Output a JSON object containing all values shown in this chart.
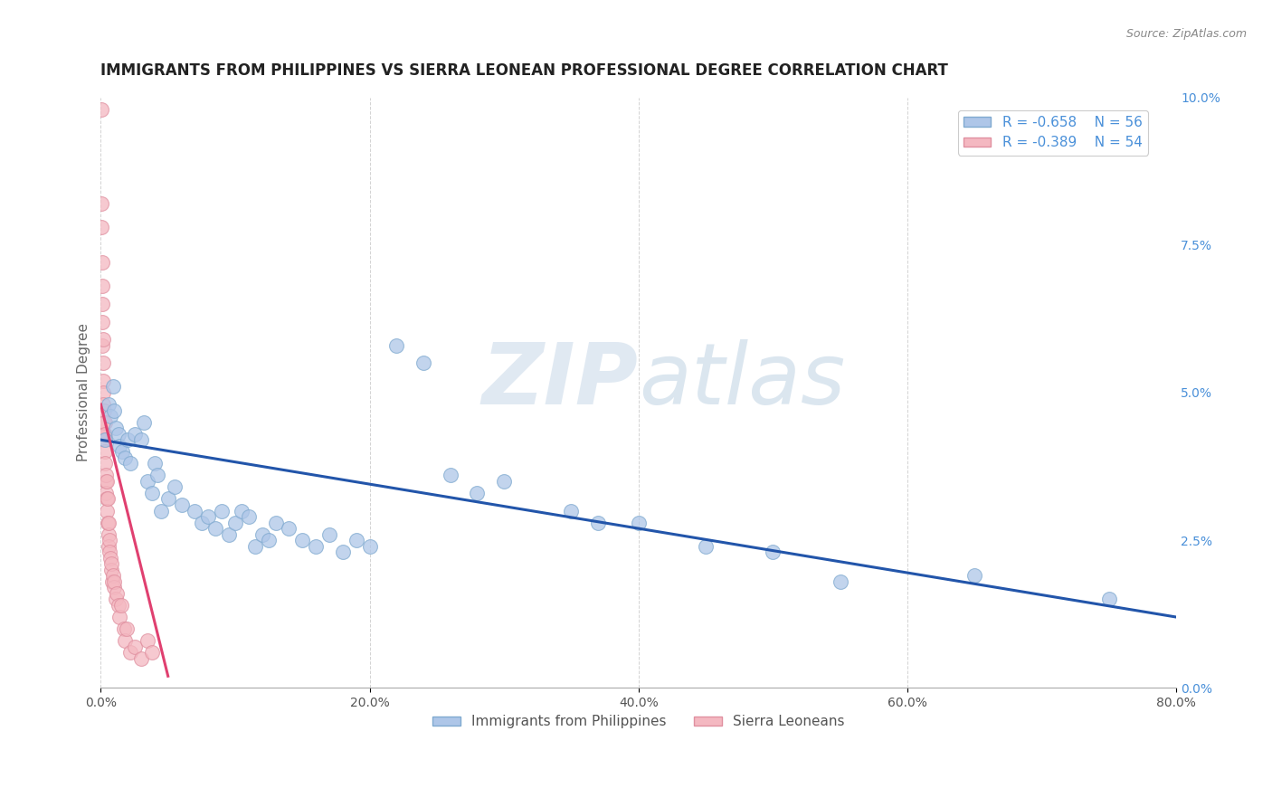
{
  "title": "IMMIGRANTS FROM PHILIPPINES VS SIERRA LEONEAN PROFESSIONAL DEGREE CORRELATION CHART",
  "source_text": "Source: ZipAtlas.com",
  "ylabel": "Professional Degree",
  "legend_entries": [
    {
      "label": "Immigrants from Philippines",
      "color": "#aec6e8",
      "R": -0.658,
      "N": 56
    },
    {
      "label": "Sierra Leoneans",
      "color": "#f4b8c1",
      "R": -0.389,
      "N": 54
    }
  ],
  "xlim": [
    0.0,
    80.0
  ],
  "ylim": [
    0.0,
    10.0
  ],
  "xticks": [
    0.0,
    20.0,
    40.0,
    60.0,
    80.0
  ],
  "yticks_right": [
    0.0,
    2.5,
    5.0,
    7.5,
    10.0
  ],
  "background_color": "#ffffff",
  "grid_color": "#c8c8c8",
  "watermark_zip": "ZIP",
  "watermark_atlas": "atlas",
  "philippines_scatter": [
    [
      0.3,
      4.2
    ],
    [
      0.6,
      4.8
    ],
    [
      0.7,
      4.6
    ],
    [
      0.9,
      5.1
    ],
    [
      1.0,
      4.7
    ],
    [
      1.1,
      4.4
    ],
    [
      1.3,
      4.3
    ],
    [
      1.4,
      4.1
    ],
    [
      1.6,
      4.0
    ],
    [
      1.8,
      3.9
    ],
    [
      2.0,
      4.2
    ],
    [
      2.2,
      3.8
    ],
    [
      2.5,
      4.3
    ],
    [
      3.0,
      4.2
    ],
    [
      3.2,
      4.5
    ],
    [
      3.5,
      3.5
    ],
    [
      3.8,
      3.3
    ],
    [
      4.0,
      3.8
    ],
    [
      4.2,
      3.6
    ],
    [
      4.5,
      3.0
    ],
    [
      5.0,
      3.2
    ],
    [
      5.5,
      3.4
    ],
    [
      6.0,
      3.1
    ],
    [
      7.0,
      3.0
    ],
    [
      7.5,
      2.8
    ],
    [
      8.0,
      2.9
    ],
    [
      8.5,
      2.7
    ],
    [
      9.0,
      3.0
    ],
    [
      9.5,
      2.6
    ],
    [
      10.0,
      2.8
    ],
    [
      10.5,
      3.0
    ],
    [
      11.0,
      2.9
    ],
    [
      11.5,
      2.4
    ],
    [
      12.0,
      2.6
    ],
    [
      12.5,
      2.5
    ],
    [
      13.0,
      2.8
    ],
    [
      14.0,
      2.7
    ],
    [
      15.0,
      2.5
    ],
    [
      16.0,
      2.4
    ],
    [
      17.0,
      2.6
    ],
    [
      18.0,
      2.3
    ],
    [
      19.0,
      2.5
    ],
    [
      20.0,
      2.4
    ],
    [
      22.0,
      5.8
    ],
    [
      24.0,
      5.5
    ],
    [
      26.0,
      3.6
    ],
    [
      28.0,
      3.3
    ],
    [
      30.0,
      3.5
    ],
    [
      35.0,
      3.0
    ],
    [
      37.0,
      2.8
    ],
    [
      40.0,
      2.8
    ],
    [
      45.0,
      2.4
    ],
    [
      50.0,
      2.3
    ],
    [
      55.0,
      1.8
    ],
    [
      65.0,
      1.9
    ],
    [
      75.0,
      1.5
    ]
  ],
  "sierraleone_scatter": [
    [
      0.02,
      9.8
    ],
    [
      0.05,
      8.2
    ],
    [
      0.06,
      7.8
    ],
    [
      0.08,
      7.2
    ],
    [
      0.1,
      6.8
    ],
    [
      0.12,
      6.5
    ],
    [
      0.13,
      6.2
    ],
    [
      0.14,
      5.8
    ],
    [
      0.15,
      5.5
    ],
    [
      0.16,
      5.9
    ],
    [
      0.17,
      5.2
    ],
    [
      0.18,
      5.0
    ],
    [
      0.2,
      4.8
    ],
    [
      0.22,
      4.7
    ],
    [
      0.24,
      4.5
    ],
    [
      0.25,
      4.3
    ],
    [
      0.26,
      4.2
    ],
    [
      0.28,
      4.5
    ],
    [
      0.3,
      4.3
    ],
    [
      0.32,
      4.0
    ],
    [
      0.34,
      3.8
    ],
    [
      0.36,
      3.5
    ],
    [
      0.38,
      3.6
    ],
    [
      0.4,
      3.3
    ],
    [
      0.42,
      3.5
    ],
    [
      0.44,
      3.2
    ],
    [
      0.46,
      3.0
    ],
    [
      0.5,
      3.2
    ],
    [
      0.52,
      2.8
    ],
    [
      0.55,
      2.6
    ],
    [
      0.58,
      2.4
    ],
    [
      0.6,
      2.8
    ],
    [
      0.62,
      2.5
    ],
    [
      0.65,
      2.3
    ],
    [
      0.7,
      2.2
    ],
    [
      0.75,
      2.0
    ],
    [
      0.8,
      2.1
    ],
    [
      0.85,
      1.8
    ],
    [
      0.9,
      1.9
    ],
    [
      0.95,
      1.7
    ],
    [
      1.0,
      1.8
    ],
    [
      1.1,
      1.5
    ],
    [
      1.2,
      1.6
    ],
    [
      1.3,
      1.4
    ],
    [
      1.4,
      1.2
    ],
    [
      1.5,
      1.4
    ],
    [
      1.7,
      1.0
    ],
    [
      1.8,
      0.8
    ],
    [
      1.9,
      1.0
    ],
    [
      2.2,
      0.6
    ],
    [
      2.5,
      0.7
    ],
    [
      3.0,
      0.5
    ],
    [
      3.5,
      0.8
    ],
    [
      3.8,
      0.6
    ]
  ],
  "blue_line_x": [
    0.0,
    80.0
  ],
  "blue_line_y": [
    4.2,
    1.2
  ],
  "pink_line_x": [
    0.0,
    5.0
  ],
  "pink_line_y": [
    4.8,
    0.2
  ],
  "blue_line_color": "#2255aa",
  "pink_line_color": "#e04070",
  "blue_dot_color": "#aec6e8",
  "pink_dot_color": "#f4b8c1",
  "blue_dot_edge": "#80aad0",
  "pink_dot_edge": "#e090a0",
  "title_fontsize": 12,
  "axis_label_fontsize": 11,
  "tick_fontsize": 10,
  "legend_fontsize": 11
}
